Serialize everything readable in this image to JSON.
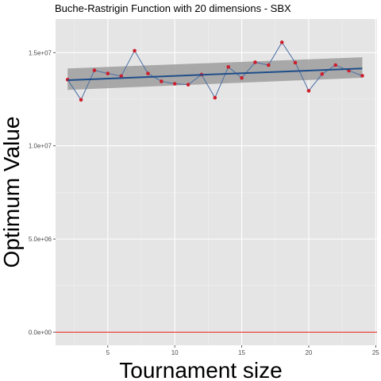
{
  "chart_data": {
    "type": "line",
    "title": "Buche-Rastrigin Function with 20 dimensions -  SBX",
    "xlabel": "Tournament size",
    "ylabel": "Optimum Value",
    "xlim": [
      1.1,
      25.1
    ],
    "ylim": [
      -700000,
      16800000
    ],
    "x_ticks": [
      5,
      10,
      15,
      20,
      25
    ],
    "x_tick_labels": [
      "5",
      "10",
      "15",
      "20",
      "25"
    ],
    "y_ticks": [
      0,
      5000000,
      10000000,
      15000000
    ],
    "y_tick_labels": [
      "0.0e+00",
      "5.0e+06",
      "1.0e+07",
      "1.5e+07"
    ],
    "grid": true,
    "series": [
      {
        "type": "line-with-points",
        "x": [
          2,
          3,
          4,
          5,
          6,
          7,
          8,
          9,
          10,
          11,
          12,
          13,
          14,
          15,
          16,
          17,
          18,
          19,
          20,
          21,
          22,
          23,
          24
        ],
        "values": [
          13550000,
          12470000,
          14050000,
          13880000,
          13740000,
          15100000,
          13880000,
          13460000,
          13330000,
          13280000,
          13820000,
          12580000,
          14230000,
          13640000,
          14480000,
          14330000,
          15550000,
          14460000,
          12950000,
          13850000,
          14330000,
          14030000,
          13760000
        ]
      },
      {
        "type": "trend-line",
        "x": [
          2,
          24
        ],
        "values": [
          13520000,
          14150000
        ],
        "ci_lower": [
          13000000,
          13650000
        ],
        "ci_upper": [
          14150000,
          14750000
        ]
      },
      {
        "type": "reference-line",
        "y": 0
      }
    ],
    "colors": {
      "panel": "#e5e5e5",
      "grid_major": "#ffffff",
      "grid_minor": "#f0f0f0",
      "line": "#4a6fa5",
      "points": "#cc1f2d",
      "trend": "#1f4e8a",
      "ribbon": "#999999",
      "reference": "#e8241e"
    }
  }
}
